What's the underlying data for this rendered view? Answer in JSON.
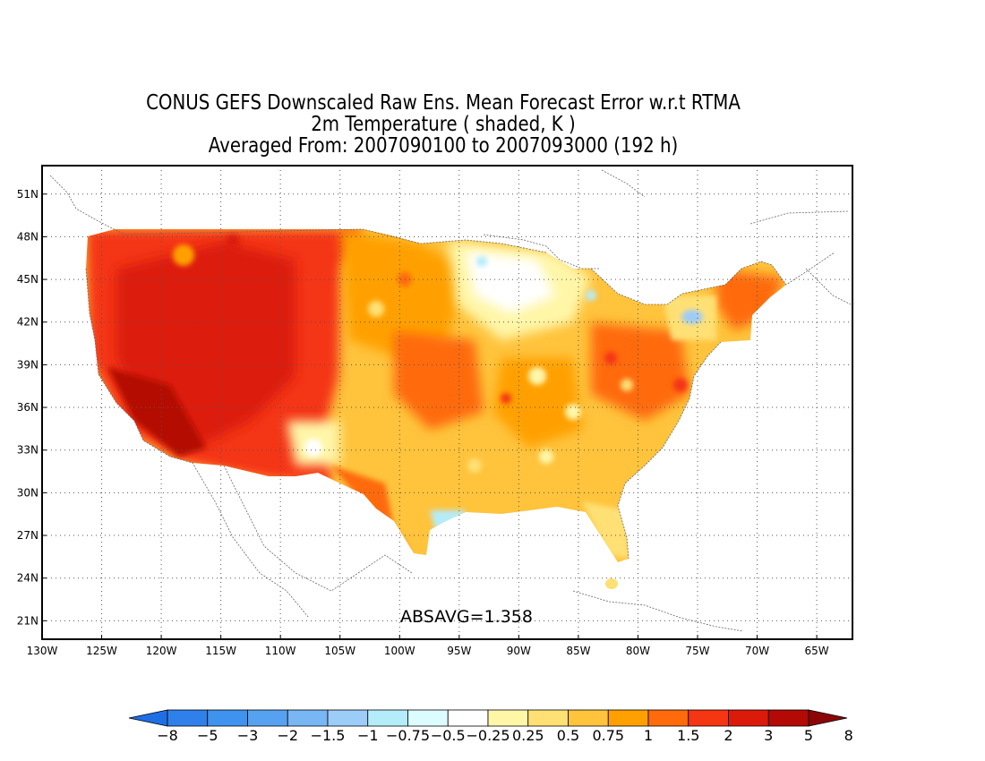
{
  "title": {
    "line1": "CONUS GEFS Downscaled Raw Ens. Mean Forecast Error w.r.t RTMA",
    "line2": "2m Temperature ( shaded, K )",
    "line3": "Averaged From: 2007090100 to 2007093000 (192 h)"
  },
  "stat_label": "ABSAVG=1.358",
  "lat_ticks": [
    "51N",
    "48N",
    "45N",
    "42N",
    "39N",
    "36N",
    "33N",
    "30N",
    "27N",
    "24N",
    "21N"
  ],
  "lon_ticks": [
    "130W",
    "125W",
    "120W",
    "115W",
    "110W",
    "105W",
    "100W",
    "95W",
    "90W",
    "85W",
    "80W",
    "75W",
    "70W",
    "65W"
  ],
  "colorbar": {
    "labels": [
      "-8",
      "-5",
      "-3",
      "-2",
      "-1.5",
      "-1",
      "-0.75",
      "-0.5",
      "-0.25",
      "0.25",
      "0.5",
      "0.75",
      "1",
      "1.5",
      "2",
      "3",
      "5",
      "8"
    ],
    "colors": [
      "#1e6fe6",
      "#2f80ea",
      "#3f92ee",
      "#56a2f0",
      "#78b6f4",
      "#9cccf8",
      "#b4ecfa",
      "#ddfcff",
      "#ffffff",
      "#fff6a8",
      "#ffe074",
      "#ffc33c",
      "#ffa000",
      "#ff6a0a",
      "#f43612",
      "#dc1a0a",
      "#b40a06",
      "#8c0606"
    ]
  },
  "map": {
    "projection": "cylindrical",
    "lon_range": [
      -130,
      -62
    ],
    "lat_range": [
      19.7,
      53
    ],
    "grid": true,
    "regions": [
      {
        "name": "western-us-high-error",
        "level": "3"
      },
      {
        "name": "southwest-very-high-error",
        "level": "5"
      },
      {
        "name": "central-plains-moderate",
        "level": "1"
      },
      {
        "name": "great-lakes-near-zero",
        "level": "0.25"
      },
      {
        "name": "southeast-moderate",
        "level": "1"
      },
      {
        "name": "northeast-moderate",
        "level": "1.5"
      },
      {
        "name": "gulf-coast-negative",
        "level": "-0.5"
      }
    ]
  }
}
